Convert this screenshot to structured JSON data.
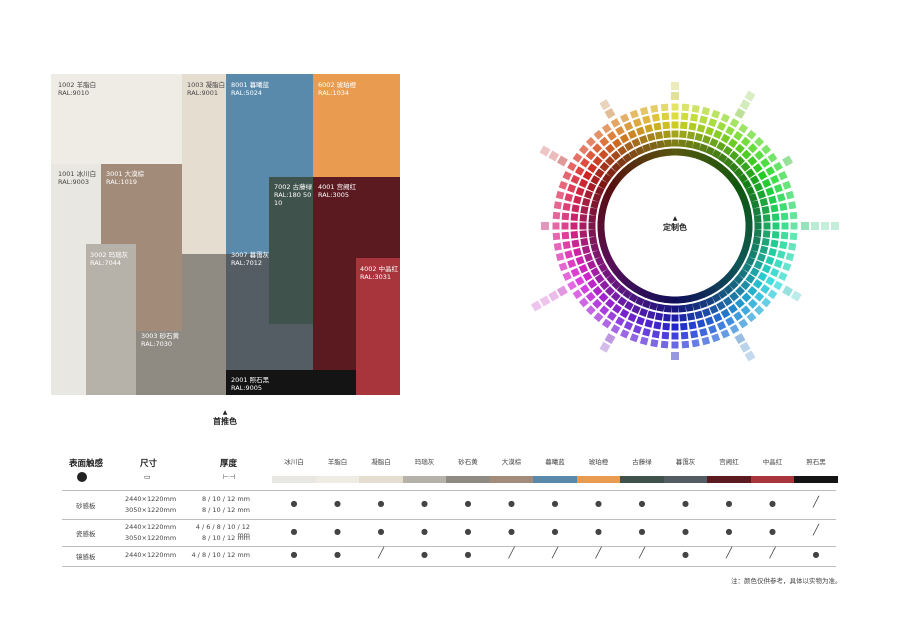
{
  "swatches": {
    "1002": {
      "code": "1002 羊脂白",
      "ral": "RAL:9010",
      "color": "#efece6"
    },
    "1003": {
      "code": "1003 凝脂白",
      "ral": "RAL:9001",
      "color": "#e6ddd1"
    },
    "8001": {
      "code": "8001 暮曦蓝",
      "ral": "RAL:5024",
      "color": "#5a8aab"
    },
    "6002": {
      "code": "6002 琥珀橙",
      "ral": "RAL:1034",
      "color": "#e99c4f"
    },
    "1001": {
      "code": "1001 冰川白",
      "ral": "RAL:9003",
      "color": "#e9e7e2"
    },
    "3001": {
      "code": "3001 大漠棕",
      "ral": "RAL:1019",
      "color": "#a28b79"
    },
    "7002": {
      "code": "7002 古藤绿",
      "ral": "RAL:180 50 10",
      "color": "#3f524b"
    },
    "4001": {
      "code": "4001 宫阙红",
      "ral": "RAL:3005",
      "color": "#5b1a20"
    },
    "3002": {
      "code": "3002 玛瑙灰",
      "ral": "RAL:7044",
      "color": "#b6b2aa"
    },
    "3007": {
      "code": "3007 暮霭灰",
      "ral": "RAL:7012",
      "color": "#555d64"
    },
    "4002": {
      "code": "4002 中晶红",
      "ral": "RAL:3031",
      "color": "#a7353b"
    },
    "3003": {
      "code": "3003 砂石黄",
      "ral": "RAL:7030",
      "color": "#8f8b83"
    },
    "2001": {
      "code": "2001 照石黑",
      "ral": "RAL:9005",
      "color": "#141414"
    }
  },
  "recommended_caption": "首推色",
  "custom_caption": "定制色",
  "table": {
    "headers": {
      "texture": "表面触感",
      "size": "尺寸",
      "thickness": "厚度"
    },
    "columns": [
      {
        "name": "冰川白",
        "color": "#e9e7e2"
      },
      {
        "name": "羊脂白",
        "color": "#efece6"
      },
      {
        "name": "凝脂白",
        "color": "#e6ddd1"
      },
      {
        "name": "玛瑙灰",
        "color": "#b6b2aa"
      },
      {
        "name": "砂石黄",
        "color": "#8f8b83"
      },
      {
        "name": "大漠棕",
        "color": "#a28b79"
      },
      {
        "name": "暮曦蓝",
        "color": "#5a8aab"
      },
      {
        "name": "琥珀橙",
        "color": "#e99c4f"
      },
      {
        "name": "古藤绿",
        "color": "#3f524b"
      },
      {
        "name": "暮霭灰",
        "color": "#555d64"
      },
      {
        "name": "宫阙红",
        "color": "#5b1a20"
      },
      {
        "name": "中晶红",
        "color": "#a7353b"
      },
      {
        "name": "照石黑",
        "color": "#141414"
      }
    ],
    "rows": [
      {
        "texture": "砂感板",
        "sizes": [
          "2440×1220mm",
          "3050×1220mm"
        ],
        "thickness": [
          "8 / 10 / 12 mm",
          "8 / 10 / 12 mm"
        ],
        "marks": [
          "●",
          "●",
          "●",
          "●",
          "●",
          "●",
          "●",
          "●",
          "●",
          "●",
          "●",
          "●",
          "╱"
        ]
      },
      {
        "texture": "瓷感板",
        "sizes": [
          "2440×1220mm",
          "3050×1220mm"
        ],
        "thickness": [
          "4 / 6 / 8 / 10 / 12 mm",
          "8 / 10 / 12 mm"
        ],
        "marks": [
          "●",
          "●",
          "●",
          "●",
          "●",
          "●",
          "●",
          "●",
          "●",
          "●",
          "●",
          "●",
          "╱"
        ]
      },
      {
        "texture": "镜感板",
        "sizes": [
          "2440×1220mm"
        ],
        "thickness": [
          "4 / 8 / 10 / 12  mm"
        ],
        "marks": [
          "●",
          "●",
          "╱",
          "●",
          "●",
          "╱",
          "╱",
          "╱",
          "╱",
          "●",
          "╱",
          "╱",
          "●"
        ]
      }
    ]
  },
  "note": "注：颜色仅供参考，具体以实物为准。"
}
